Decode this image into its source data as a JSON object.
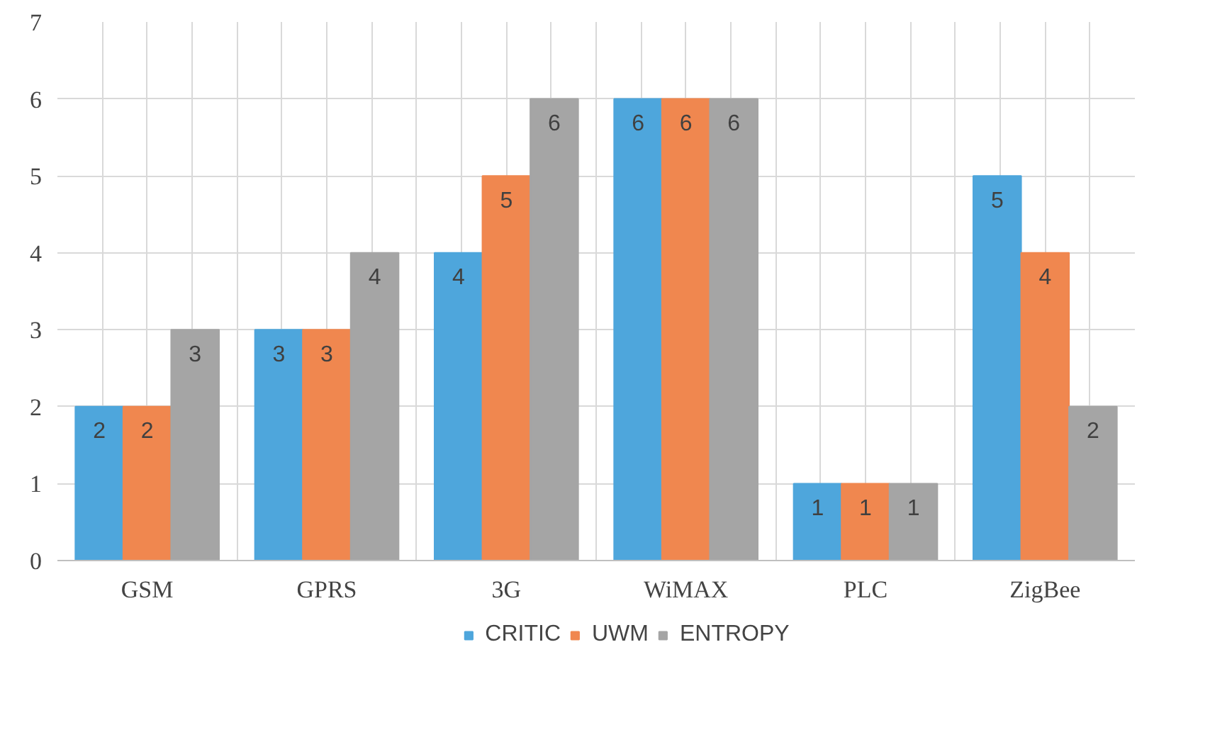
{
  "chart_data": {
    "type": "bar",
    "categories": [
      "GSM",
      "GPRS",
      "3G",
      "WiMAX",
      "PLC",
      "ZigBee"
    ],
    "series": [
      {
        "name": "CRITIC",
        "color": "#4ea6dc",
        "values": [
          2,
          3,
          4,
          6,
          1,
          5
        ]
      },
      {
        "name": "UWM",
        "color": "#f0874f",
        "values": [
          2,
          3,
          5,
          6,
          1,
          4
        ]
      },
      {
        "name": "ENTROPY",
        "color": "#a5a5a5",
        "values": [
          3,
          4,
          6,
          6,
          1,
          2
        ]
      }
    ],
    "ylim": [
      0,
      7
    ],
    "yticks": [
      0,
      1,
      2,
      3,
      4,
      5,
      6,
      7
    ],
    "grid": true,
    "legend": "bottom",
    "data_labels": true
  }
}
